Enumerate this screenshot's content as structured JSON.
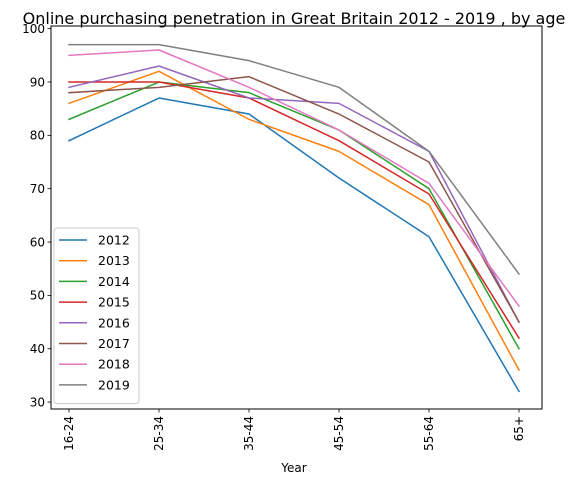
{
  "chart_data": {
    "type": "line",
    "title": "Online purchasing penetration in Great Britain 2012 - 2019 , by age",
    "xlabel": "Year",
    "ylabel": "",
    "categories": [
      "16-24",
      "25-34",
      "35-44",
      "45-54",
      "55-64",
      "65+"
    ],
    "ylim": [
      28.7,
      100.5
    ],
    "yticks": [
      30,
      40,
      50,
      60,
      70,
      80,
      90,
      100
    ],
    "ytick_labels": [
      "30",
      "40",
      "50",
      "60",
      "70",
      "80",
      "90",
      "100"
    ],
    "grid": false,
    "legend_position": "lower-left",
    "series": [
      {
        "name": "2012",
        "color": "#1f77b4",
        "values": [
          79,
          87,
          84,
          72,
          61,
          32
        ]
      },
      {
        "name": "2013",
        "color": "#ff7f0e",
        "values": [
          86,
          92,
          83,
          77,
          67,
          36
        ]
      },
      {
        "name": "2014",
        "color": "#2ca02c",
        "values": [
          83,
          90,
          88,
          81,
          70,
          40
        ]
      },
      {
        "name": "2015",
        "color": "#d62728",
        "values": [
          90,
          90,
          87,
          79,
          69,
          42
        ]
      },
      {
        "name": "2016",
        "color": "#9467bd",
        "values": [
          89,
          93,
          87,
          86,
          77,
          45
        ]
      },
      {
        "name": "2017",
        "color": "#8c564b",
        "values": [
          88,
          89,
          91,
          84,
          75,
          45
        ]
      },
      {
        "name": "2018",
        "color": "#e377c2",
        "values": [
          95,
          96,
          89,
          81,
          71,
          48
        ]
      },
      {
        "name": "2019",
        "color": "#7f7f7f",
        "values": [
          97,
          97,
          94,
          89,
          77,
          54
        ]
      }
    ]
  }
}
